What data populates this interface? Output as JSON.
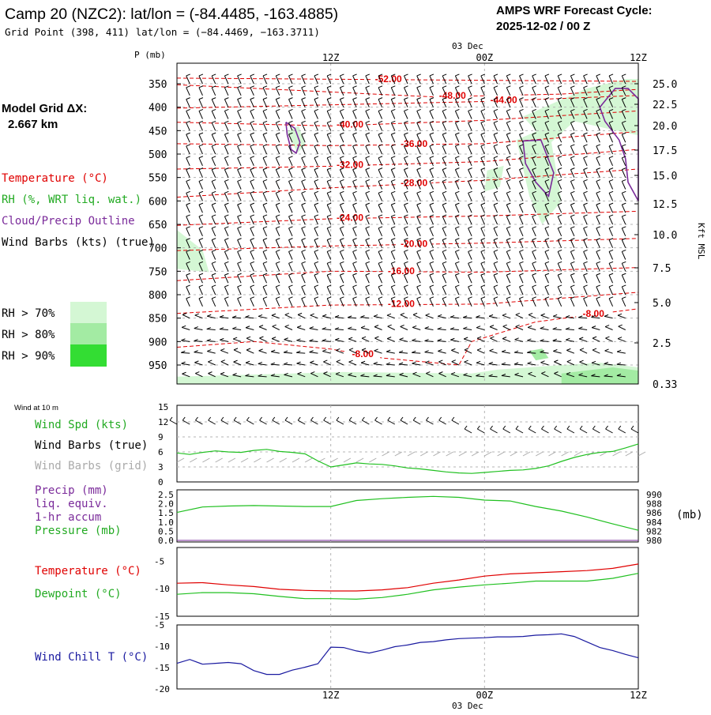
{
  "header": {
    "title": "Camp 20 (NZC2):  lat/lon = (-84.4485, -163.4885)",
    "subtitle": "Grid Point (398, 411) lat/lon = (−84.4469, −163.3711)",
    "cycle_line1": "AMPS WRF Forecast Cycle:",
    "cycle_line2": "2025-12-02 / 00  Z"
  },
  "sidebar": {
    "model_grid_label": "Model Grid ΔX:",
    "model_grid_value": "2.667 km",
    "legend_temperature": "Temperature (°C)",
    "legend_rh": "RH (%, WRT liq. wat.)",
    "legend_cloud": "Cloud/Precip Outline",
    "legend_wind": "Wind Barbs (kts) (true)",
    "rh_70": "RH > 70%",
    "rh_80": "RH > 80%",
    "rh_90": "RH > 90%",
    "wind_10m": "Wind at 10 m",
    "wind_spd": "Wind Spd (kts)",
    "wind_barbs_true": "Wind Barbs (true)",
    "wind_barbs_grid": "Wind Barbs (grid)",
    "precip_line1": "Precip (mm)",
    "precip_line2": "liq. equiv.",
    "precip_line3": "1-hr accum",
    "pressure": "Pressure (mb)",
    "pressure_unit": "(mb)",
    "temperature": "Temperature (°C)",
    "dewpoint": "Dewpoint (°C)",
    "wind_chill": "Wind Chill T (°C)"
  },
  "colors": {
    "temperature": "#e00000",
    "rh_line": "#20c020",
    "cloud": "#7a2a9a",
    "wind": "#000000",
    "wind_grid": "#aaaaaa",
    "rh70": "#d4f7d4",
    "rh80": "#a3eba3",
    "rh90": "#33dd33",
    "wind_chill": "#1a1aa0",
    "grid": "#b5b5b5"
  },
  "chart_data": [
    {
      "type": "line",
      "name": "vertical-cross-section",
      "y_axis_label": "P (mb)",
      "right_axis_label": "Kft MSL",
      "y_ticks": [
        "350",
        "400",
        "450",
        "500",
        "550",
        "600",
        "650",
        "700",
        "750",
        "800",
        "850",
        "900",
        "950"
      ],
      "right_ticks": [
        "25.0",
        "22.5",
        "20.0",
        "17.5",
        "15.0",
        "12.5",
        "10.0",
        "7.5",
        "5.0",
        "2.5",
        "0.33"
      ],
      "x_ticks_top": [
        "12Z",
        "00Z",
        "12Z"
      ],
      "date_label_top": "03 Dec",
      "temperature_contour_labels": [
        "-52.00",
        "-48.00",
        "-44.00",
        "-40.00",
        "-36.00",
        "-32.00",
        "-28.00",
        "-24.00",
        "-20.00",
        "-16.00",
        "-12.00",
        "-8.00",
        "-8.00"
      ],
      "temperature_contours": [
        {
          "level": -52,
          "x_hours": [
            0,
            36
          ],
          "p": [
            338,
            345
          ]
        },
        {
          "level": -48,
          "x_hours": [
            0,
            10,
            20,
            30,
            36
          ],
          "p": [
            352,
            365,
            378,
            372,
            362
          ]
        },
        {
          "level": -44,
          "x_hours": [
            0,
            12,
            24,
            36
          ],
          "p": [
            402,
            395,
            388,
            375
          ]
        },
        {
          "level": -40,
          "x_hours": [
            0,
            12,
            24,
            36
          ],
          "p": [
            432,
            440,
            428,
            408
          ]
        },
        {
          "level": -36,
          "x_hours": [
            0,
            12,
            24,
            36
          ],
          "p": [
            478,
            482,
            478,
            452
          ]
        },
        {
          "level": -32,
          "x_hours": [
            0,
            12,
            24,
            36
          ],
          "p": [
            532,
            526,
            516,
            490
          ]
        },
        {
          "level": -28,
          "x_hours": [
            0,
            12,
            24,
            36
          ],
          "p": [
            592,
            572,
            556,
            532
          ]
        },
        {
          "level": -24,
          "x_hours": [
            0,
            12,
            24,
            36
          ],
          "p": [
            652,
            638,
            632,
            622
          ]
        },
        {
          "level": -20,
          "x_hours": [
            0,
            12,
            24,
            36
          ],
          "p": [
            706,
            696,
            690,
            680
          ]
        },
        {
          "level": -16,
          "x_hours": [
            0,
            12,
            24,
            36
          ],
          "p": [
            770,
            750,
            752,
            742
          ]
        },
        {
          "level": -12,
          "x_hours": [
            0,
            12,
            24,
            36
          ],
          "p": [
            840,
            822,
            820,
            795
          ]
        },
        {
          "level": -8,
          "x_hours": [
            0,
            6,
            12,
            16,
            22,
            23,
            28,
            36
          ],
          "p": [
            912,
            900,
            916,
            935,
            950,
            900,
            858,
            830
          ]
        }
      ],
      "rh_regions_hours_pressure": [
        {
          "class": "rh70",
          "x_hours": [
            0,
            2,
            2.5,
            0
          ],
          "p": [
            662,
            705,
            752,
            745
          ]
        },
        {
          "class": "rh70",
          "x_hours": [
            8.6,
            9.5,
            10.0,
            9.4
          ],
          "p": [
            452,
            440,
            480,
            498
          ]
        },
        {
          "class": "rh70",
          "x_hours": [
            24.2,
            25.5,
            25.2,
            24.0
          ],
          "p": [
            535,
            525,
            570,
            580
          ]
        },
        {
          "class": "rh70",
          "x_hours": [
            26.5,
            29,
            30,
            28.5,
            27.5
          ],
          "p": [
            470,
            440,
            600,
            650,
            590
          ]
        },
        {
          "class": "rh70",
          "x_hours": [
            27,
            32,
            35,
            36,
            36,
            31,
            29
          ],
          "p": [
            420,
            360,
            340,
            340,
            460,
            430,
            480
          ]
        },
        {
          "class": "rh70",
          "x_hours": [
            0,
            13,
            23,
            25,
            30,
            33,
            36,
            36,
            0
          ],
          "p": [
            975,
            965,
            968,
            960,
            950,
            945,
            955,
            995,
            995
          ]
        },
        {
          "class": "rh80",
          "x_hours": [
            30,
            34,
            36,
            36,
            30
          ],
          "p": [
            968,
            955,
            962,
            995,
            995
          ]
        },
        {
          "class": "rh80",
          "x_hours": [
            27.5,
            28.5,
            29,
            28
          ],
          "p": [
            920,
            915,
            935,
            940
          ]
        }
      ],
      "cloud_outlines_hours_pressure": [
        {
          "x_hours": [
            8.5,
            9.2,
            9.6,
            9.3,
            8.9,
            8.6,
            8.5
          ],
          "p": [
            432,
            445,
            475,
            498,
            490,
            458,
            432
          ]
        },
        {
          "x_hours": [
            27.0,
            28.4,
            29.4,
            29.0,
            28.0,
            27.2,
            27.0
          ],
          "p": [
            472,
            470,
            540,
            590,
            560,
            520,
            472
          ]
        },
        {
          "x_hours": [
            33.0,
            34.2,
            35.2,
            36.0,
            36.0,
            35.2,
            35.0,
            34.5,
            33.4,
            33.0
          ],
          "p": [
            400,
            360,
            360,
            382,
            600,
            560,
            510,
            470,
            430,
            400
          ]
        }
      ],
      "wind_barbs_kts_by_level": {
        "350": [
          30,
          30,
          30,
          30,
          30,
          30,
          35,
          35,
          35,
          40,
          40,
          40,
          40,
          40,
          40,
          40,
          40,
          40,
          40,
          40,
          40,
          40,
          40,
          35,
          35,
          35,
          35,
          35,
          35,
          35,
          35,
          35,
          35,
          35,
          35,
          35,
          35
        ],
        "550": [
          25,
          25,
          25,
          25,
          25,
          25,
          25,
          25,
          25,
          25,
          25,
          25,
          25,
          25,
          25,
          30,
          30,
          30,
          30,
          30,
          30,
          30,
          30,
          30,
          30,
          30,
          30,
          30,
          25,
          25,
          25,
          25,
          25,
          25,
          25,
          25,
          25
        ],
        "750": [
          20,
          20,
          20,
          20,
          20,
          20,
          20,
          20,
          20,
          20,
          20,
          20,
          20,
          20,
          20,
          20,
          20,
          20,
          20,
          20,
          20,
          20,
          20,
          20,
          20,
          20,
          20,
          20,
          20,
          20,
          20,
          20,
          20,
          20,
          20,
          20,
          20
        ],
        "950": [
          15,
          15,
          15,
          15,
          15,
          15,
          15,
          15,
          15,
          15,
          15,
          15,
          15,
          15,
          15,
          15,
          15,
          10,
          10,
          10,
          10,
          10,
          10,
          10,
          10,
          10,
          10,
          10,
          10,
          10,
          10,
          10,
          10,
          10,
          10,
          10,
          10
        ]
      },
      "x_range_hours": [
        0,
        36
      ]
    },
    {
      "type": "line",
      "name": "wind-speed-10m",
      "y_ticks": [
        "0",
        "3",
        "6",
        "9",
        "12",
        "15"
      ],
      "ylim": [
        0,
        15
      ],
      "x_hours": [
        0,
        1,
        2,
        3,
        4,
        5,
        6,
        7,
        8,
        9,
        10,
        11,
        12,
        13,
        14,
        15,
        16,
        17,
        18,
        19,
        20,
        21,
        22,
        23,
        24,
        25,
        26,
        27,
        28,
        29,
        30,
        31,
        32,
        33,
        34,
        35,
        36
      ],
      "values": [
        5.8,
        5.5,
        5.9,
        6.2,
        6.0,
        5.9,
        6.3,
        6.5,
        6.1,
        5.9,
        5.6,
        4.2,
        3.0,
        3.4,
        3.8,
        3.6,
        3.5,
        3.2,
        2.8,
        2.6,
        2.3,
        2.0,
        1.8,
        1.7,
        1.9,
        2.1,
        2.3,
        2.4,
        2.7,
        3.2,
        4.1,
        4.9,
        5.5,
        5.9,
        6.1,
        6.8,
        7.6
      ]
    },
    {
      "type": "line",
      "name": "precip-pressure",
      "y_ticks_left": [
        "0.0",
        "0.5",
        "1.0",
        "1.5",
        "2.0",
        "2.5"
      ],
      "y_ticks_right": [
        "980",
        "982",
        "984",
        "986",
        "988",
        "990"
      ],
      "ylim_left": [
        0,
        2.5
      ],
      "ylim_right": [
        980,
        990
      ],
      "x_hours": [
        0,
        2,
        4,
        6,
        8,
        10,
        12,
        14,
        16,
        18,
        20,
        22,
        24,
        26,
        28,
        30,
        32,
        34,
        36
      ],
      "pressure_mb": [
        986.1,
        987.3,
        987.5,
        987.6,
        987.5,
        987.4,
        987.4,
        988.7,
        989.1,
        989.4,
        989.6,
        989.4,
        988.8,
        988.6,
        987.4,
        986.4,
        985.1,
        983.6,
        982.2
      ],
      "precip_mm": [
        0,
        0,
        0,
        0,
        0,
        0,
        0,
        0,
        0,
        0,
        0,
        0,
        0,
        0,
        0,
        0,
        0,
        0,
        0
      ]
    },
    {
      "type": "line",
      "name": "temperature-dewpoint",
      "y_ticks": [
        "-15",
        "-10",
        "-5"
      ],
      "ylim": [
        -15,
        -2.5
      ],
      "x_hours": [
        0,
        2,
        4,
        6,
        8,
        10,
        12,
        14,
        16,
        18,
        20,
        22,
        24,
        26,
        28,
        30,
        32,
        34,
        36
      ],
      "temperature": [
        -9.0,
        -8.9,
        -9.3,
        -9.6,
        -10.1,
        -10.3,
        -10.4,
        -10.4,
        -10.2,
        -9.8,
        -9.0,
        -8.4,
        -7.7,
        -7.3,
        -7.1,
        -6.9,
        -6.7,
        -6.3,
        -5.5
      ],
      "dewpoint": [
        -11.0,
        -10.7,
        -10.7,
        -10.9,
        -11.4,
        -11.8,
        -11.8,
        -11.9,
        -11.6,
        -11.0,
        -10.2,
        -9.7,
        -9.3,
        -9.0,
        -8.6,
        -8.6,
        -8.6,
        -8.1,
        -7.2
      ]
    },
    {
      "type": "line",
      "name": "wind-chill",
      "y_ticks": [
        "-20",
        "-15",
        "-10",
        "-5"
      ],
      "ylim": [
        -20,
        -5
      ],
      "x_ticks_bottom": [
        "12Z",
        "00Z",
        "12Z"
      ],
      "date_label_bottom": "03 Dec",
      "x_hours": [
        0,
        1,
        2,
        3,
        4,
        5,
        6,
        7,
        8,
        9,
        10,
        11,
        12,
        13,
        14,
        15,
        16,
        17,
        18,
        19,
        20,
        21,
        22,
        23,
        24,
        25,
        26,
        27,
        28,
        29,
        30,
        31,
        32,
        33,
        34,
        35,
        36
      ],
      "values": [
        -14.0,
        -13.1,
        -14.2,
        -14.0,
        -13.8,
        -14.1,
        -15.7,
        -16.6,
        -16.6,
        -15.6,
        -14.9,
        -14.1,
        -10.2,
        -10.3,
        -11.1,
        -11.6,
        -10.9,
        -10.1,
        -9.7,
        -9.1,
        -8.9,
        -8.5,
        -8.2,
        -8.1,
        -8.0,
        -7.8,
        -7.8,
        -7.7,
        -7.4,
        -7.3,
        -7.1,
        -7.7,
        -9.0,
        -10.3,
        -11.0,
        -11.9,
        -12.7
      ]
    }
  ]
}
